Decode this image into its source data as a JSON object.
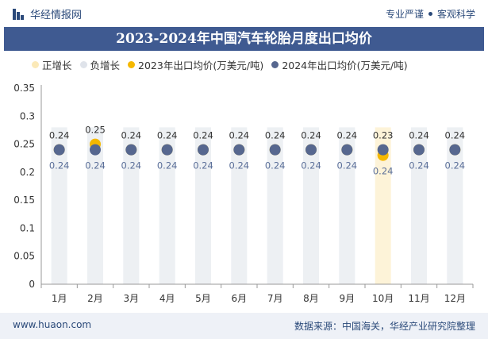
{
  "header": {
    "brand": "华经情报网",
    "tagline_left": "专业严谨",
    "tagline_right": "客观科学"
  },
  "footer": {
    "url": "www.huaon.com",
    "source": "数据来源：中国海关，华经产业研究院整理"
  },
  "colors": {
    "title_bg": "#3f5a91",
    "pos_growth": "#fbe9b8",
    "neg_growth": "#dfe3ea",
    "series_2023": "#f5b800",
    "series_2024": "#56678f"
  },
  "chart_data": {
    "type": "line",
    "title": "2023-2024年中国汽车轮胎月度出口均价",
    "categories": [
      "1月",
      "2月",
      "3月",
      "4月",
      "5月",
      "6月",
      "7月",
      "8月",
      "9月",
      "10月",
      "11月",
      "12月"
    ],
    "legend": [
      "正增长",
      "负增长",
      "2023年出口均价(万美元/吨)",
      "2024年出口均价(万美元/吨)"
    ],
    "legend_position": "top-left",
    "series": [
      {
        "name": "2023年出口均价(万美元/吨)",
        "values": [
          0.24,
          0.25,
          0.24,
          0.24,
          0.24,
          0.24,
          0.24,
          0.24,
          0.24,
          0.23,
          0.24,
          0.24
        ]
      },
      {
        "name": "2024年出口均价(万美元/吨)",
        "values": [
          0.24,
          0.24,
          0.24,
          0.24,
          0.24,
          0.24,
          0.24,
          0.24,
          0.24,
          0.24,
          0.24,
          0.24
        ]
      }
    ],
    "growth": [
      "neg",
      "neg",
      "neg",
      "neg",
      "neg",
      "neg",
      "neg",
      "neg",
      "neg",
      "pos",
      "neg",
      "neg"
    ],
    "ylim": [
      0,
      0.35
    ],
    "yticks": [
      "0",
      "0.05",
      "0.1",
      "0.15",
      "0.2",
      "0.25",
      "0.3",
      "0.35"
    ],
    "grid": false
  }
}
